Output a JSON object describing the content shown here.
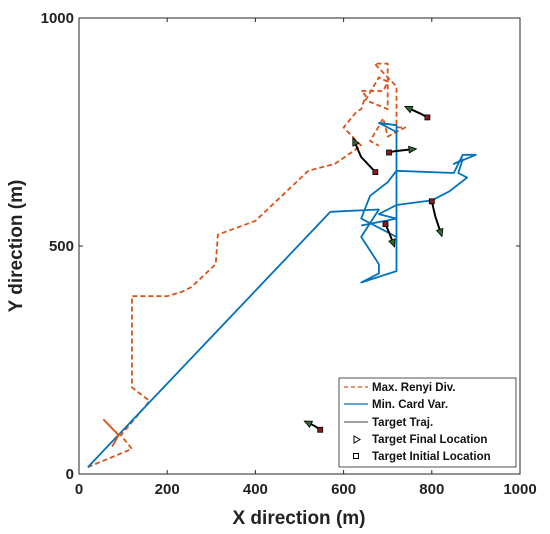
{
  "chart_data": {
    "type": "line",
    "xlabel": "X direction (m)",
    "ylabel": "Y direction (m)",
    "xlim": [
      0,
      1000
    ],
    "ylim": [
      0,
      1000
    ],
    "x_ticks": [
      0,
      200,
      400,
      600,
      800,
      1000
    ],
    "y_ticks": [
      0,
      500,
      1000
    ],
    "x_tick_labels": [
      "0",
      "200",
      "400",
      "600",
      "800",
      "1000"
    ],
    "y_tick_labels": [
      "0",
      "500",
      "1000"
    ],
    "grid": false,
    "legend_position": "bottom-right",
    "legend": [
      {
        "label": "Max. Renyi Div.",
        "color": "#d95319",
        "style": "dashed"
      },
      {
        "label": "Min. Card Var.",
        "color": "#0072bd",
        "style": "solid"
      },
      {
        "label": "Target Traj.",
        "color": "#000000",
        "style": "solid"
      },
      {
        "label": "Target Final Location",
        "marker": "triangle"
      },
      {
        "label": "Target Initial Location",
        "marker": "square"
      }
    ],
    "series": [
      {
        "name": "Max. Renyi Div.",
        "color": "#d95319",
        "style": "dashed",
        "x": [
          20,
          120,
          95,
          130,
          160,
          120,
          120,
          200,
          235,
          255,
          310,
          315,
          400,
          520,
          580,
          640,
          600,
          630,
          640,
          650,
          640,
          690,
          700,
          680,
          650,
          700,
          700,
          670,
          720,
          720,
          740,
          700,
          690,
          660,
          680
        ],
        "y": [
          15,
          55,
          85,
          125,
          160,
          190,
          390,
          390,
          400,
          410,
          460,
          525,
          555,
          665,
          680,
          720,
          760,
          795,
          800,
          830,
          840,
          840,
          860,
          870,
          820,
          800,
          900,
          900,
          850,
          760,
          760,
          740,
          780,
          730,
          720
        ]
      },
      {
        "name": "Min. Card Var.",
        "color": "#0072bd",
        "style": "solid",
        "x": [
          20,
          570,
          680,
          640,
          680,
          680,
          640,
          720,
          720,
          680,
          720,
          720,
          640,
          660,
          700,
          720,
          850,
          870,
          900,
          850,
          870,
          860,
          880,
          840,
          800,
          720,
          680,
          720,
          640
        ],
        "y": [
          15,
          575,
          580,
          520,
          460,
          440,
          420,
          445,
          765,
          770,
          750,
          520,
          560,
          610,
          640,
          665,
          660,
          700,
          700,
          680,
          690,
          660,
          650,
          620,
          600,
          590,
          570,
          560,
          545
        ]
      }
    ],
    "targets": [
      {
        "x": [
          790,
          775,
          748
        ],
        "y": [
          782,
          790,
          802
        ]
      },
      {
        "x": [
          703,
          715,
          755
        ],
        "y": [
          705,
          708,
          712
        ]
      },
      {
        "x": [
          672,
          640,
          625
        ],
        "y": [
          662,
          695,
          728
        ]
      },
      {
        "x": [
          695,
          705,
          712
        ],
        "y": [
          548,
          525,
          507
        ]
      },
      {
        "x": [
          800,
          808,
          820
        ],
        "y": [
          598,
          565,
          530
        ]
      },
      {
        "x": [
          547,
          535,
          520
        ],
        "y": [
          97,
          105,
          112
        ]
      }
    ],
    "orange_segment": {
      "x": [
        55,
        90,
        75
      ],
      "y": [
        120,
        85,
        60
      ]
    }
  }
}
